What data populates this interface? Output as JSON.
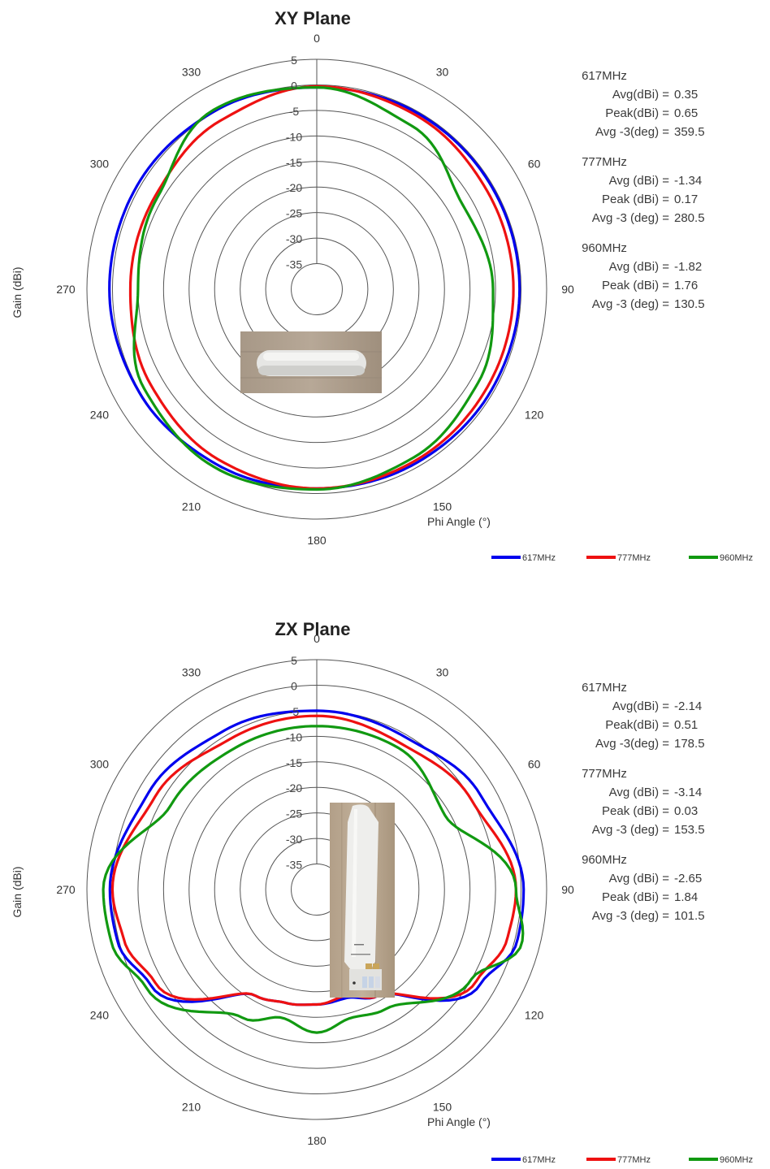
{
  "colors": {
    "617MHz": "#0000ee",
    "777MHz": "#ee1111",
    "960MHz": "#119911",
    "grid": "#555555"
  },
  "chart_data": [
    {
      "type": "polar-line",
      "title": "XY Plane",
      "ylabel": "Gain (dBi)",
      "xlabel": "Phi Angle (°)",
      "angle_ticks": [
        "0",
        "30",
        "60",
        "90",
        "120",
        "150",
        "180",
        "210",
        "240",
        "270",
        "300",
        "330"
      ],
      "radial_ticks": [
        5,
        0,
        -5,
        -10,
        -15,
        -20,
        -25,
        -30,
        -35
      ],
      "radial_tick_labels": [
        "5",
        "0",
        "-5",
        "-10",
        "-15",
        "-20",
        "-25",
        "-30",
        "-35"
      ],
      "rlim": [
        -40,
        5
      ],
      "legend": [
        "617MHz",
        "777MHz",
        "960MHz"
      ],
      "legend_position": "bottom-right",
      "angles": [
        0,
        30,
        60,
        90,
        120,
        150,
        180,
        210,
        240,
        270,
        300,
        330
      ],
      "series": [
        {
          "name": "617MHz",
          "values": [
            -0.5,
            -0.3,
            -0.3,
            -0.3,
            -0.5,
            -0.8,
            -1.0,
            -0.5,
            0.2,
            0.6,
            0.6,
            0.2
          ]
        },
        {
          "name": "777MHz",
          "values": [
            -0.3,
            -0.8,
            -1.5,
            -1.5,
            -1.5,
            -1.3,
            -1.0,
            -1.5,
            -2.5,
            -3.5,
            -3.5,
            -2.0
          ]
        },
        {
          "name": "960MHz",
          "values": [
            -0.5,
            -3.0,
            -7.0,
            -5.5,
            -3.5,
            -2.0,
            -0.8,
            0.2,
            -1.0,
            -5.0,
            -4.0,
            0.5
          ]
        }
      ],
      "stats": [
        {
          "freq": "617MHz",
          "lines": [
            {
              "label": "Avg(dBi) =",
              "value": "0.35"
            },
            {
              "label": "Peak(dBi) =",
              "value": "0.65"
            },
            {
              "label": "Avg -3(deg) =",
              "value": "359.5"
            }
          ]
        },
        {
          "freq": "777MHz",
          "lines": [
            {
              "label": "Avg (dBi) =",
              "value": "-1.34"
            },
            {
              "label": "Peak (dBi) =",
              "value": "0.17"
            },
            {
              "label": "Avg -3 (deg) =",
              "value": "280.5"
            }
          ]
        },
        {
          "freq": "960MHz",
          "lines": [
            {
              "label": "Avg (dBi) =",
              "value": "-1.82"
            },
            {
              "label": "Peak (dBi) =",
              "value": "1.76"
            },
            {
              "label": "Avg -3 (deg) =",
              "value": "130.5"
            }
          ]
        }
      ]
    },
    {
      "type": "polar-line",
      "title": "ZX Plane",
      "ylabel": "Gain (dBi)",
      "xlabel": "Phi Angle (°)",
      "angle_ticks": [
        "0",
        "30",
        "60",
        "90",
        "120",
        "150",
        "180",
        "210",
        "240",
        "270",
        "300",
        "330"
      ],
      "radial_ticks": [
        5,
        0,
        -5,
        -10,
        -15,
        -20,
        -25,
        -30,
        -35
      ],
      "radial_tick_labels": [
        "5",
        "0",
        "-5",
        "-10",
        "-15",
        "-20",
        "-25",
        "-30",
        "-35"
      ],
      "rlim": [
        -40,
        5
      ],
      "legend": [
        "617MHz",
        "777MHz",
        "960MHz"
      ],
      "legend_position": "bottom-right",
      "angles": [
        0,
        30,
        60,
        90,
        105,
        120,
        150,
        165,
        180,
        195,
        210,
        240,
        255,
        270,
        300,
        330
      ],
      "series": [
        {
          "name": "617MHz",
          "values": [
            -5.0,
            -5.5,
            -3.0,
            0.5,
            0.5,
            -3.0,
            -16.0,
            -18.0,
            -17.5,
            -17.0,
            -16.0,
            -2.5,
            0.3,
            0.5,
            -2.0,
            -4.0
          ]
        },
        {
          "name": "777MHz",
          "values": [
            -6.0,
            -7.0,
            -5.0,
            -1.0,
            -1.5,
            -4.0,
            -16.0,
            -18.5,
            -17.5,
            -17.0,
            -16.0,
            -3.5,
            -1.0,
            0.0,
            -3.5,
            -6.0
          ]
        },
        {
          "name": "960MHz",
          "values": [
            -8.0,
            -8.0,
            -11.0,
            -1.0,
            1.5,
            -5.0,
            -13.0,
            -14.0,
            -12.0,
            -14.0,
            -11.0,
            -1.5,
            1.5,
            1.8,
            -7.0,
            -8.0
          ]
        }
      ],
      "stats": [
        {
          "freq": "617MHz",
          "lines": [
            {
              "label": "Avg(dBi) =",
              "value": "-2.14"
            },
            {
              "label": "Peak(dBi) =",
              "value": "0.51"
            },
            {
              "label": "Avg -3(deg) =",
              "value": "178.5"
            }
          ]
        },
        {
          "freq": "777MHz",
          "lines": [
            {
              "label": "Avg (dBi) =",
              "value": "-3.14"
            },
            {
              "label": "Peak (dBi) =",
              "value": "0.03"
            },
            {
              "label": "Avg -3 (deg) =",
              "value": "153.5"
            }
          ]
        },
        {
          "freq": "960MHz",
          "lines": [
            {
              "label": "Avg (dBi) =",
              "value": "-2.65"
            },
            {
              "label": "Peak (dBi) =",
              "value": "1.84"
            },
            {
              "label": "Avg -3 (deg) =",
              "value": "101.5"
            }
          ]
        }
      ]
    }
  ]
}
